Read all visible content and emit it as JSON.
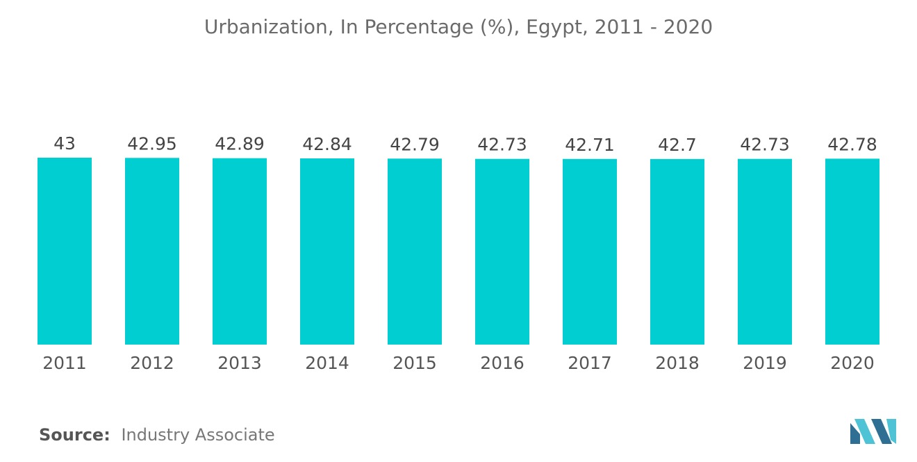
{
  "title": "Urbanization, In Percentage (%), Egypt, 2011 - 2020",
  "source": {
    "label": "Source:",
    "text": "Industry Associate"
  },
  "colors": {
    "bar": "#00CED1",
    "text": "#555555",
    "logo_dark": "#2F6F93",
    "logo_light": "#4FC3D6"
  },
  "logo_icon": "mordor-intelligence-logo-icon",
  "chart_data": {
    "type": "bar",
    "title": "Urbanization, In Percentage (%), Egypt, 2011 - 2020",
    "xlabel": "",
    "ylabel": "",
    "categories": [
      "2011",
      "2012",
      "2013",
      "2014",
      "2015",
      "2016",
      "2017",
      "2018",
      "2019",
      "2020"
    ],
    "values": [
      43,
      42.95,
      42.89,
      42.84,
      42.79,
      42.73,
      42.71,
      42.7,
      42.73,
      42.78
    ],
    "value_labels": [
      "43",
      "42.95",
      "42.89",
      "42.84",
      "42.79",
      "42.73",
      "42.71",
      "42.7",
      "42.73",
      "42.78"
    ],
    "ylim": [
      0,
      43
    ],
    "grid": false,
    "legend": "none"
  }
}
